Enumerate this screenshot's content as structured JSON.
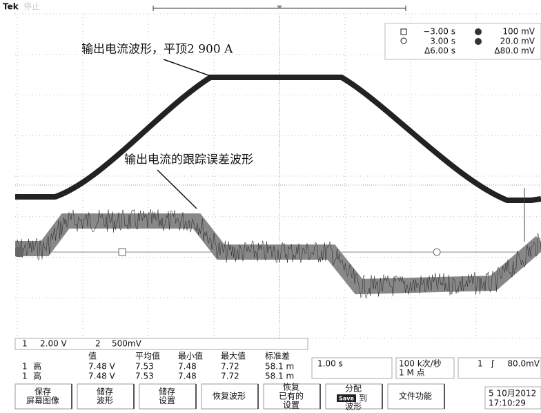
{
  "header": {
    "brand": "Tek",
    "status": "停止"
  },
  "annotations": [
    "输出电流波形，平顶2 900 A",
    "输出电流的跟踪误差波形"
  ],
  "cursor_readout": {
    "a_time": "−3.00 s",
    "b_time": "3.00 s",
    "delta_time": "Δ6.00 s",
    "a_value": "100 mV",
    "b_value": "20.0 mV",
    "delta_value": "Δ80.0 mV"
  },
  "channels": {
    "ch1": "1",
    "ch1_scale": "2.00 V",
    "ch2": "2",
    "ch2_scale": "500mV"
  },
  "measurements": {
    "headers": [
      "值",
      "平均值",
      "最小值",
      "最大值",
      "标准差"
    ],
    "rows": [
      [
        "1",
        "高",
        "7.48 V",
        "7.53",
        "7.48",
        "7.72",
        "58.1 m"
      ],
      [
        "1",
        "高",
        "7.48 V",
        "7.53",
        "7.48",
        "7.72",
        "58.1 m"
      ]
    ]
  },
  "timebase": "1.00 s",
  "sample_rate": "100 k次/秒",
  "record_length": "1 M 点",
  "trigger": {
    "source": "1",
    "slope": "ʃ",
    "level": "80.0mV"
  },
  "buttons": [
    [
      "保存",
      "屏幕图像"
    ],
    [
      "储存",
      "波形"
    ],
    [
      "储存",
      "设置"
    ],
    [
      "恢复波形"
    ],
    [
      "恢复",
      "已有的",
      "设置"
    ],
    [
      "分配",
      "Save",
      "到",
      "波形"
    ],
    [
      "文件功能"
    ]
  ],
  "datetime": [
    "5 10月2012",
    "17:10:29"
  ]
}
